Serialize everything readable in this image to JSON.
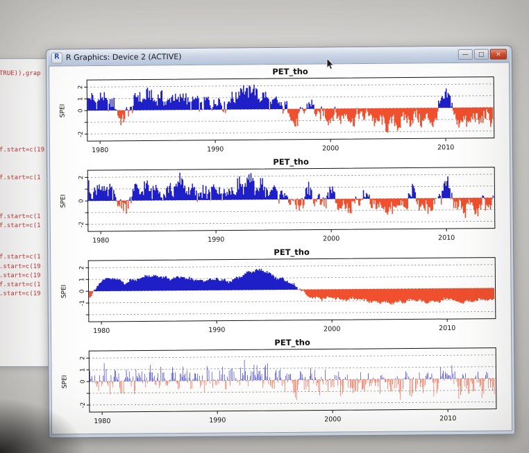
{
  "window": {
    "title": "R Graphics: Device 2 (ACTIVE)",
    "icon_text": "R",
    "controls": {
      "minimize": "—",
      "maximize": "□",
      "close": "×"
    }
  },
  "background_window": {
    "text_color": "#cc3230",
    "code_lines": [
      {
        "text": "TRUE)),grap"
      },
      {
        "text": "f.start=c(19"
      },
      {
        "text": "f.start=c(1"
      },
      {
        "text": "f.start=c(1"
      },
      {
        "text": "f.start=c(1"
      },
      {
        "text": "f.start=c(1"
      },
      {
        "text": ".start=c(19"
      },
      {
        "text": ".start=c(19"
      },
      {
        "text": "f.start=c(1"
      },
      {
        "text": ".start=c(19"
      }
    ]
  },
  "colors": {
    "spei_positive": "#1f1fc8",
    "spei_negative": "#f0502e",
    "titlebar_close": "#d9532f"
  },
  "chart_data": [
    {
      "type": "area",
      "title": "PET_tho",
      "ylabel": "SPEI",
      "x_ticks": [
        "1980",
        "1990",
        "2000",
        "2010"
      ],
      "x_tick_years": [
        1980,
        1990,
        2000,
        2010
      ],
      "x_range": [
        1978.9,
        2014.2
      ],
      "ylim": [
        -2.6,
        2.6
      ],
      "gridlines": [
        -2,
        -1,
        0,
        1,
        2
      ],
      "y_ticks": [
        -2,
        -1,
        0,
        1,
        2
      ],
      "y_tick_labels": [
        "-2",
        "",
        "0",
        "1",
        "2"
      ],
      "series_annual": {
        "start_year": 1979,
        "values": [
          0.8,
          1.0,
          0.6,
          -0.9,
          0.9,
          1.2,
          1.0,
          0.8,
          1.1,
          0.6,
          0.5,
          0.7,
          0.4,
          1.5,
          1.7,
          1.1,
          0.5,
          0.3,
          -1.3,
          0.5,
          -0.5,
          -0.7,
          -0.6,
          -0.9,
          -0.4,
          -1.1,
          -1.4,
          -1.2,
          -0.8,
          -1.0,
          -1.1,
          1.4,
          -1.2,
          -1.1,
          -0.9
        ]
      },
      "roughness": 0.55,
      "bar_style": "solid",
      "positive_color": "#1f1fc8",
      "negative_color": "#f0502e"
    },
    {
      "type": "area",
      "title": "PET_tho",
      "ylabel": "SPEI",
      "x_ticks": [
        "1980",
        "1990",
        "2000",
        "2010"
      ],
      "x_tick_years": [
        1980,
        1990,
        2000,
        2010
      ],
      "x_range": [
        1978.9,
        2014.2
      ],
      "ylim": [
        -2.6,
        2.6
      ],
      "gridlines": [
        -2,
        -1,
        0,
        1,
        2
      ],
      "y_ticks": [
        -2,
        -1,
        0,
        1,
        2
      ],
      "y_tick_labels": [
        "-2",
        "",
        "0",
        "",
        "2"
      ],
      "series_annual": {
        "start_year": 1979,
        "values": [
          0.9,
          1.1,
          0.5,
          -0.7,
          0.8,
          1.0,
          0.9,
          0.7,
          1.6,
          0.5,
          0.6,
          0.8,
          0.5,
          1.2,
          1.4,
          1.0,
          0.6,
          0.4,
          -0.8,
          0.7,
          -0.4,
          0.5,
          -0.6,
          -0.8,
          0.4,
          -0.9,
          -1.0,
          -0.7,
          0.5,
          -0.9,
          -0.6,
          1.2,
          -1.0,
          -0.8,
          -0.7
        ]
      },
      "roughness": 0.6,
      "bar_style": "solid",
      "positive_color": "#1f1fc8",
      "negative_color": "#f0502e"
    },
    {
      "type": "area",
      "title": "PET_tho",
      "ylabel": "SPEI",
      "x_ticks": [
        "1980",
        "1990",
        "2000",
        "2010"
      ],
      "x_tick_years": [
        1980,
        1990,
        2000,
        2010
      ],
      "x_range": [
        1978.9,
        2014.2
      ],
      "ylim": [
        -2.6,
        2.6
      ],
      "gridlines": [
        -2,
        -1,
        0,
        1,
        2
      ],
      "y_ticks": [
        -2,
        -1,
        0,
        1,
        2
      ],
      "y_tick_labels": [
        "",
        "-1",
        "0",
        "1",
        "2"
      ],
      "series_annual": {
        "start_year": 1979,
        "values": [
          -0.4,
          0.9,
          1.1,
          0.7,
          1.0,
          1.3,
          1.2,
          1.0,
          1.1,
          0.9,
          0.8,
          1.0,
          0.7,
          1.1,
          1.6,
          1.7,
          1.1,
          0.8,
          0.2,
          -0.6,
          -0.8,
          -0.7,
          -0.9,
          -0.8,
          -1.0,
          -1.1,
          -1.2,
          -1.1,
          -1.0,
          -1.1,
          -1.2,
          -0.8,
          -1.2,
          -1.1,
          -1.0
        ]
      },
      "roughness": 0.12,
      "bar_style": "solid",
      "positive_color": "#1f1fc8",
      "negative_color": "#f0502e"
    },
    {
      "type": "area",
      "title": "PET_tho",
      "ylabel": "SPEI",
      "x_ticks": [
        "1980",
        "1990",
        "2000",
        "2010"
      ],
      "x_tick_years": [
        1980,
        1990,
        2000,
        2010
      ],
      "x_range": [
        1978.9,
        2014.2
      ],
      "ylim": [
        -2.6,
        2.6
      ],
      "gridlines": [
        -2,
        -1,
        0,
        1,
        2
      ],
      "y_ticks": [
        -2,
        -1,
        0,
        1,
        2
      ],
      "y_tick_labels": [
        "-2",
        "",
        "0",
        "1",
        "2"
      ],
      "series_annual": {
        "start_year": 1979,
        "values": [
          0.2,
          0.4,
          0.1,
          -0.3,
          0.3,
          0.4,
          0.3,
          0.2,
          0.4,
          0.1,
          0.1,
          0.2,
          0.0,
          0.5,
          0.6,
          0.3,
          0.1,
          0.0,
          -0.5,
          0.2,
          -0.3,
          -0.2,
          -0.3,
          -0.4,
          -0.2,
          -0.5,
          -0.6,
          -0.5,
          -0.4,
          -0.5,
          -0.5,
          0.3,
          -0.5,
          -0.5,
          -0.4
        ]
      },
      "roughness": 0.85,
      "bar_style": "thin",
      "positive_color": "#1f1fc8",
      "negative_color": "#f0502e"
    }
  ]
}
